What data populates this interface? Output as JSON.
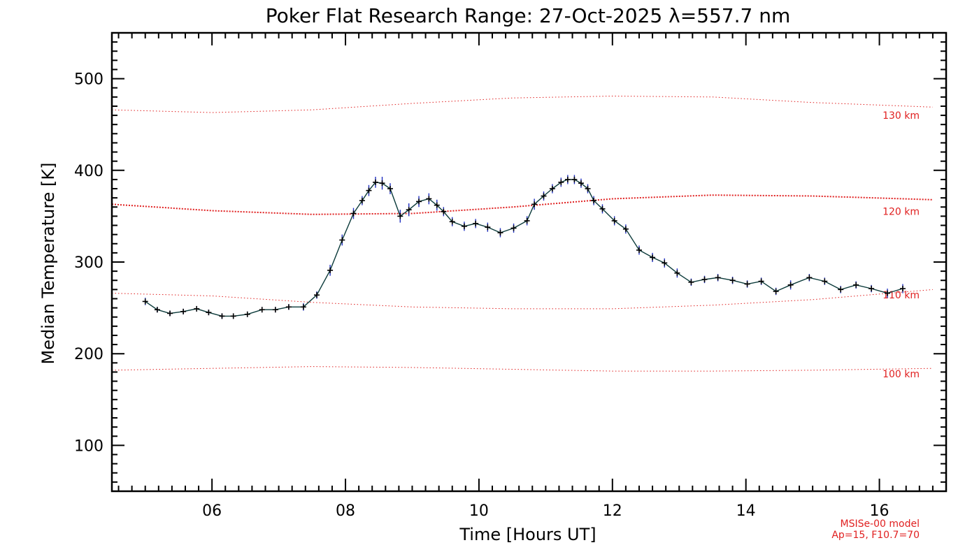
{
  "chart_data": {
    "type": "line",
    "title": "Poker Flat Research Range: 27-Oct-2025 λ=557.7 nm",
    "xlabel": "Time [Hours UT]",
    "ylabel": "Median Temperature [K]",
    "xlim": [
      4.5,
      17.0
    ],
    "ylim": [
      50,
      550
    ],
    "x_ticks": [
      6,
      8,
      10,
      12,
      14,
      16
    ],
    "x_tick_labels": [
      "06",
      "08",
      "10",
      "12",
      "14",
      "16"
    ],
    "y_ticks": [
      100,
      200,
      300,
      400,
      500
    ],
    "y_tick_labels": [
      "100",
      "200",
      "300",
      "400",
      "500"
    ],
    "series": [
      {
        "name": "Median Temperature",
        "x": [
          5.0,
          5.18,
          5.37,
          5.57,
          5.77,
          5.95,
          6.15,
          6.32,
          6.53,
          6.75,
          6.95,
          7.15,
          7.37,
          7.57,
          7.77,
          7.95,
          8.12,
          8.25,
          8.35,
          8.45,
          8.55,
          8.67,
          8.82,
          8.95,
          9.1,
          9.25,
          9.37,
          9.47,
          9.6,
          9.78,
          9.95,
          10.13,
          10.32,
          10.52,
          10.72,
          10.83,
          10.97,
          11.1,
          11.23,
          11.33,
          11.43,
          11.53,
          11.63,
          11.72,
          11.85,
          12.03,
          12.2,
          12.4,
          12.6,
          12.78,
          12.97,
          13.18,
          13.38,
          13.58,
          13.8,
          14.02,
          14.23,
          14.45,
          14.67,
          14.95,
          15.18,
          15.42,
          15.65,
          15.88,
          16.12,
          16.35
        ],
        "y": [
          257,
          248,
          244,
          246,
          249,
          245,
          241,
          241,
          243,
          248,
          248,
          251,
          251,
          264,
          291,
          324,
          353,
          367,
          378,
          387,
          386,
          380,
          350,
          357,
          366,
          369,
          362,
          355,
          344,
          339,
          342,
          338,
          332,
          337,
          345,
          363,
          372,
          380,
          387,
          390,
          390,
          386,
          380,
          367,
          358,
          345,
          336,
          313,
          305,
          299,
          288,
          278,
          281,
          283,
          280,
          276,
          279,
          268,
          275,
          283,
          279,
          270,
          275,
          271,
          266,
          271
        ],
        "error": [
          4,
          3,
          3,
          3,
          3,
          3,
          3,
          3,
          3,
          3,
          3,
          3,
          4,
          4,
          6,
          6,
          6,
          5,
          6,
          6,
          7,
          6,
          7,
          7,
          6,
          6,
          6,
          5,
          5,
          5,
          5,
          5,
          5,
          5,
          5,
          6,
          5,
          5,
          5,
          5,
          5,
          5,
          5,
          5,
          5,
          5,
          5,
          5,
          5,
          5,
          5,
          4,
          4,
          4,
          4,
          4,
          4,
          4,
          5,
          4,
          4,
          4,
          4,
          4,
          5,
          5
        ]
      }
    ],
    "model_curves": [
      {
        "label": "130 km",
        "x": [
          4.5,
          6.0,
          7.5,
          9.0,
          10.5,
          12.0,
          13.5,
          15.0,
          16.8
        ],
        "y": [
          466,
          463,
          466,
          473,
          479,
          481,
          480,
          474,
          469
        ]
      },
      {
        "label": "120 km",
        "x": [
          4.5,
          6.0,
          7.5,
          9.0,
          10.5,
          12.0,
          13.5,
          15.0,
          16.8
        ],
        "y": [
          363,
          356,
          352,
          353,
          360,
          369,
          373,
          372,
          368
        ]
      },
      {
        "label": "110 km",
        "x": [
          4.5,
          6.0,
          7.5,
          9.0,
          10.5,
          12.0,
          13.5,
          15.0,
          16.8
        ],
        "y": [
          266,
          263,
          256,
          251,
          249,
          249,
          253,
          259,
          270
        ]
      },
      {
        "label": "100 km",
        "x": [
          4.5,
          6.0,
          7.5,
          9.0,
          10.5,
          12.0,
          13.5,
          15.0,
          16.8
        ],
        "y": [
          182,
          184,
          186,
          185,
          183,
          181,
          181,
          182,
          184
        ]
      }
    ],
    "model_labels_at": {
      "130 km": 464,
      "120 km": 359,
      "110 km": 268,
      "100 km": 182
    },
    "model_note": [
      "MSISe-00 model",
      "Ap=15, F10.7=70"
    ]
  }
}
